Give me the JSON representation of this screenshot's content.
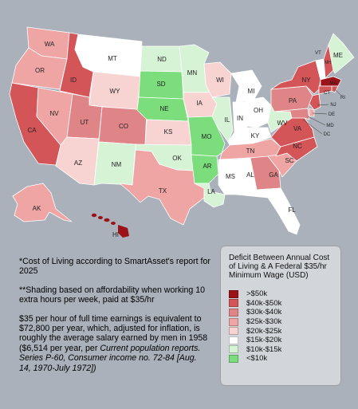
{
  "notes": {
    "note1": "*Cost of Living according to SmartAsset's report for 2025",
    "note2": "**Shading based on affordability when working 10 extra hours per week, paid at $35/hr",
    "note3": "$35 per hour of full time earnings is equivalent to $72,800 per year, which, adjusted for inflation, is roughly the average salary earned by men in 1958 ($6,514 per year, per",
    "note3_source": "Current population reports. Series P-60, Consumer income no. 72-84 [Aug. 14, 1970-July 1972])"
  },
  "legend": {
    "title": "Deficit Between Annual Cost of Living & A Federal $35/hr Minimum Wage (USD)",
    "items": [
      {
        "label": ">$50k",
        "color": "#9b1218"
      },
      {
        "label": "$40k-$50k",
        "color": "#d35558"
      },
      {
        "label": "$30k-$40k",
        "color": "#e08587"
      },
      {
        "label": "$25k-$30k",
        "color": "#eea5a4"
      },
      {
        "label": "$20k-$25k",
        "color": "#f7d3d2"
      },
      {
        "label": "$15k-$20k",
        "color": "#ffffff"
      },
      {
        "label": "$10k-$15k",
        "color": "#d6f3d6"
      },
      {
        "label": "<$10k",
        "color": "#7bdd7b"
      }
    ]
  },
  "states": {
    "WA": "WA",
    "OR": "OR",
    "CA": "CA",
    "ID": "ID",
    "NV": "NV",
    "MT": "MT",
    "WY": "WY",
    "UT": "UT",
    "AZ": "AZ",
    "CO": "CO",
    "NM": "NM",
    "ND": "ND",
    "SD": "SD",
    "NE": "NE",
    "KS": "KS",
    "OK": "OK",
    "TX": "TX",
    "MN": "MN",
    "IA": "IA",
    "MO": "MO",
    "AR": "AR",
    "LA": "LA",
    "WI": "WI",
    "IL": "IL",
    "MI": "MI",
    "IN": "IN",
    "OH": "OH",
    "KY": "KY",
    "TN": "TN",
    "MS": "MS",
    "AL": "AL",
    "GA": "GA",
    "FL": "FL",
    "SC": "SC",
    "NC": "NC",
    "VA": "VA",
    "WV": "WV",
    "PA": "PA",
    "NY": "NY",
    "VT": "VT",
    "NH": "NH",
    "ME": "ME",
    "MA": "MA",
    "RI": "RI",
    "CT": "CT",
    "NJ": "NJ",
    "DE": "DE",
    "MD": "MD",
    "DC": "DC",
    "AK": "AK",
    "HI": "HI"
  }
}
